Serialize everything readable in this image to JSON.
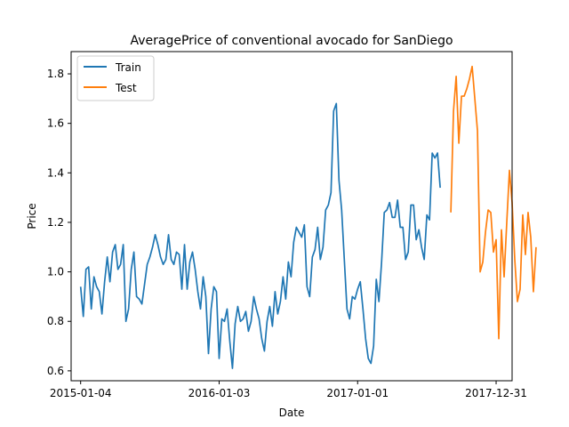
{
  "chart_data": {
    "type": "line",
    "title": "AveragePrice of conventional avocado for SanDiego",
    "xlabel": "Date",
    "ylabel": "Price",
    "x_ticks": [
      "2015-01-04",
      "2016-01-03",
      "2017-01-01",
      "2017-12-31"
    ],
    "y_ticks": [
      "0.6",
      "0.8",
      "1.0",
      "1.2",
      "1.4",
      "1.6",
      "1.8"
    ],
    "xlim": [
      "2014-12-10",
      "2018-02-11"
    ],
    "ylim": [
      0.56,
      1.89
    ],
    "grid": false,
    "legend_position": "upper-left",
    "series": [
      {
        "name": "Train",
        "color": "#1f77b4",
        "start_date": "2015-01-04",
        "step_days": 7,
        "values": [
          0.94,
          0.82,
          1.01,
          1.02,
          0.85,
          0.98,
          0.94,
          0.92,
          0.83,
          0.96,
          1.06,
          0.96,
          1.08,
          1.11,
          1.01,
          1.03,
          1.11,
          0.8,
          0.85,
          1.01,
          1.08,
          0.9,
          0.89,
          0.87,
          0.95,
          1.03,
          1.06,
          1.1,
          1.15,
          1.11,
          1.06,
          1.03,
          1.05,
          1.15,
          1.05,
          1.03,
          1.08,
          1.07,
          0.93,
          1.11,
          0.93,
          1.04,
          1.08,
          1.01,
          0.92,
          0.85,
          0.98,
          0.9,
          0.67,
          0.85,
          0.94,
          0.92,
          0.65,
          0.81,
          0.8,
          0.85,
          0.72,
          0.61,
          0.79,
          0.86,
          0.8,
          0.81,
          0.84,
          0.76,
          0.8,
          0.9,
          0.85,
          0.81,
          0.73,
          0.68,
          0.8,
          0.86,
          0.78,
          0.92,
          0.83,
          0.88,
          0.98,
          0.89,
          1.04,
          0.98,
          1.12,
          1.18,
          1.16,
          1.14,
          1.19,
          0.94,
          0.9,
          1.06,
          1.09,
          1.18,
          1.05,
          1.1,
          1.25,
          1.27,
          1.32,
          1.65,
          1.68,
          1.37,
          1.25,
          1.05,
          0.85,
          0.81,
          0.9,
          0.89,
          0.93,
          0.96,
          0.85,
          0.73,
          0.65,
          0.63,
          0.7,
          0.97,
          0.88,
          1.04,
          1.24,
          1.25,
          1.28,
          1.22,
          1.22,
          1.29,
          1.18,
          1.18,
          1.05,
          1.08,
          1.27,
          1.27,
          1.13,
          1.17,
          1.1,
          1.05,
          1.23,
          1.21,
          1.48,
          1.46,
          1.48,
          1.34
        ]
      },
      {
        "name": "Test",
        "color": "#ff7f0e",
        "start_date": "2017-09-03",
        "step_days": 7,
        "values": [
          1.24,
          1.65,
          1.79,
          1.52,
          1.71,
          1.71,
          1.74,
          1.78,
          1.83,
          1.7,
          1.57,
          1.0,
          1.04,
          1.16,
          1.25,
          1.24,
          1.08,
          1.13,
          0.73,
          1.17,
          0.98,
          1.2,
          1.41,
          1.28,
          1.05,
          0.88,
          0.93,
          1.23,
          1.07,
          1.24,
          1.14,
          0.92,
          1.1
        ]
      }
    ]
  }
}
